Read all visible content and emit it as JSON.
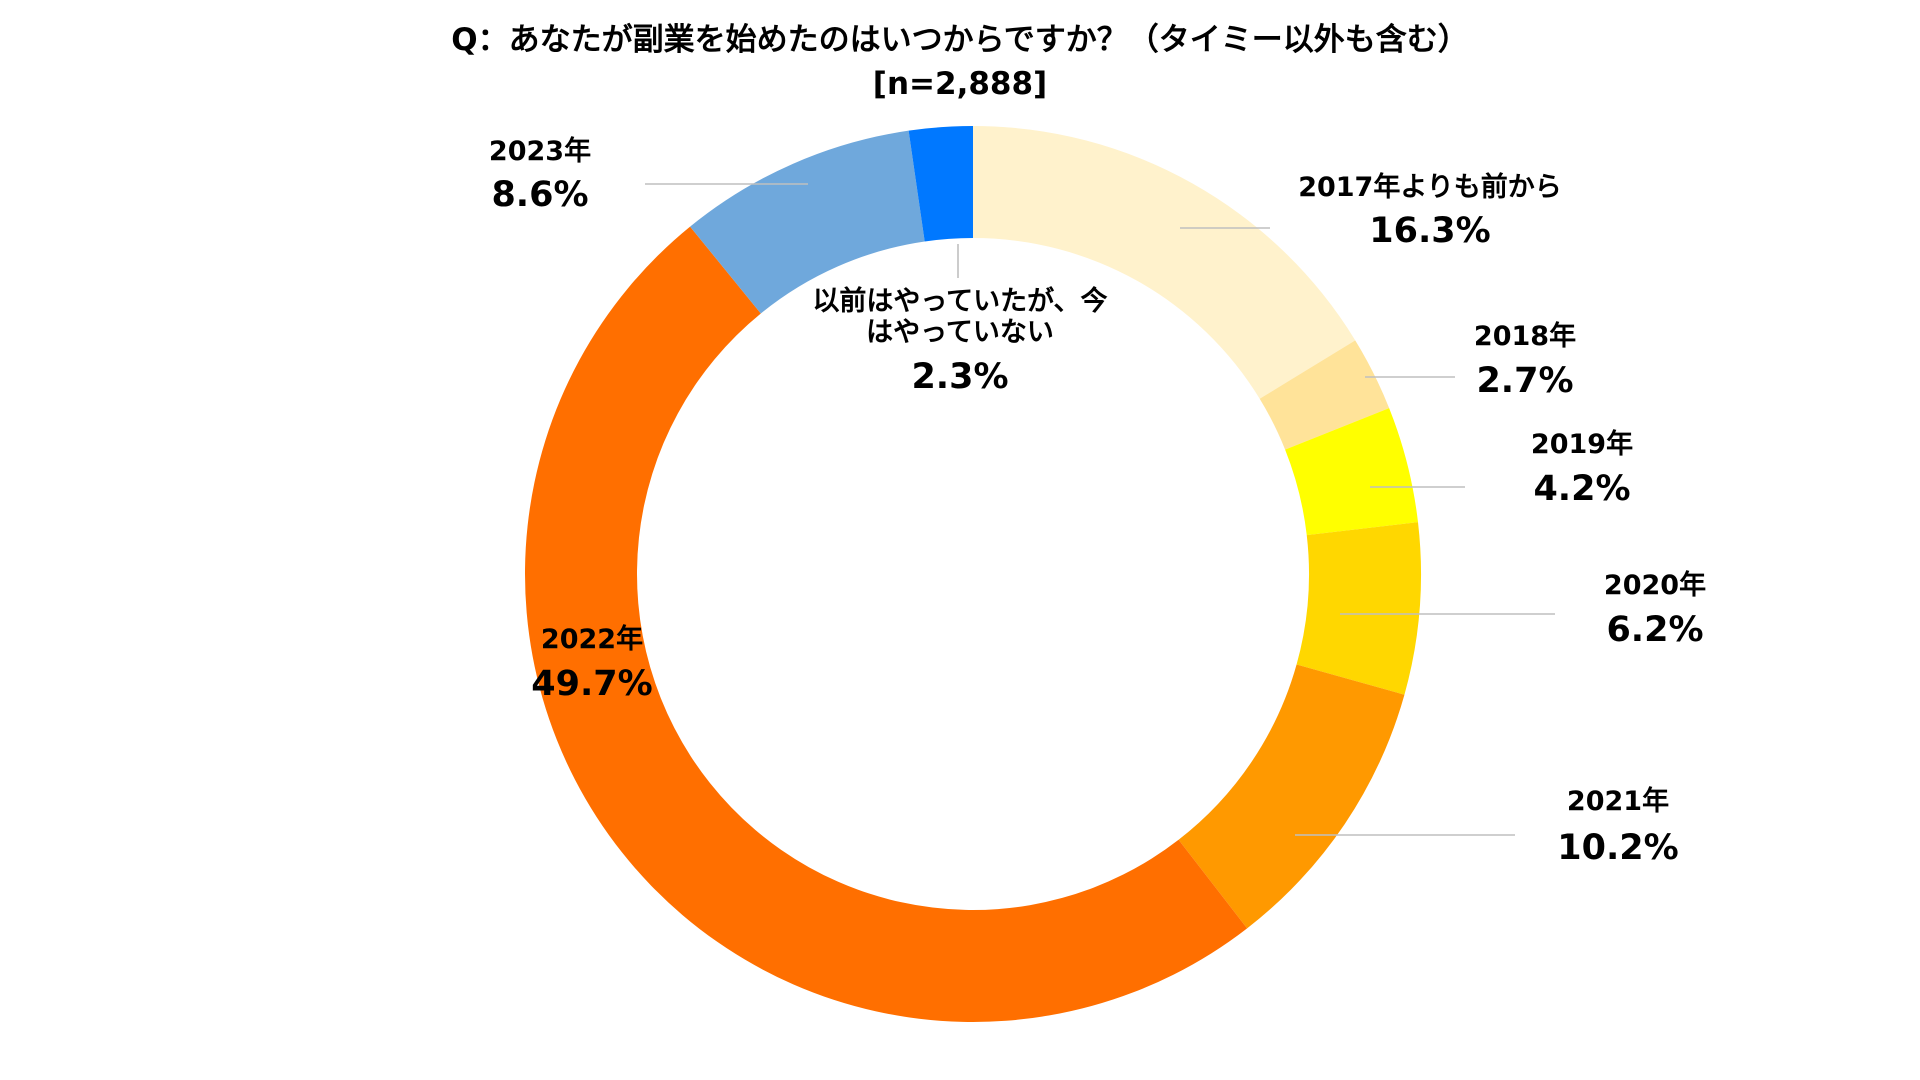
{
  "chart_data": {
    "type": "pie",
    "style": "donut",
    "title": "Q：あなたが副業を始めたのはいつからですか？（タイミー以外も含む）",
    "subtitle": "[n=2,888]",
    "unit": "%",
    "slices": [
      {
        "name": "2017年よりも前から",
        "value": 16.3,
        "value_label": "16.3%",
        "color": "#FFF2CC"
      },
      {
        "name": "2018年",
        "value": 2.7,
        "value_label": "2.7%",
        "color": "#FFE399"
      },
      {
        "name": "2019年",
        "value": 4.2,
        "value_label": "4.2%",
        "color": "#FFFF00"
      },
      {
        "name": "2020年",
        "value": 6.2,
        "value_label": "6.2%",
        "color": "#FFD700"
      },
      {
        "name": "2021年",
        "value": 10.2,
        "value_label": "10.2%",
        "color": "#FF9900"
      },
      {
        "name": "2022年",
        "value": 49.7,
        "value_label": "49.7%",
        "color": "#FF6F00"
      },
      {
        "name": "2023年",
        "value": 8.6,
        "value_label": "8.6%",
        "color": "#6FA8DC"
      },
      {
        "name": "以前はやっていたが、今はやっていない",
        "name_lines": [
          "以前はやっていたが、今",
          "はやっていない"
        ],
        "value": 2.3,
        "value_label": "2.3%",
        "color": "#0078FF"
      }
    ]
  }
}
